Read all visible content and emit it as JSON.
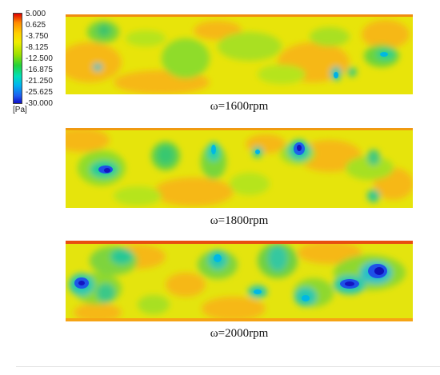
{
  "legend": {
    "ticks": [
      "5.000",
      "0.625",
      "-3.750",
      "-8.125",
      "-12.500",
      "-16.875",
      "-21.250",
      "-25.625",
      "-30.000"
    ],
    "unit": "[Pa]"
  },
  "panels": [
    {
      "caption": "ω=1600rpm"
    },
    {
      "caption": "ω=1800rpm"
    },
    {
      "caption": "ω=2000rpm"
    }
  ]
}
